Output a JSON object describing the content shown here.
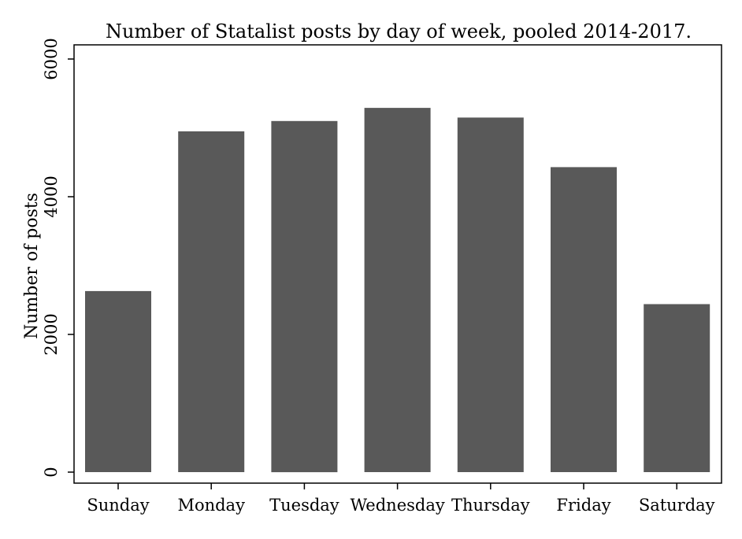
{
  "chart_data": {
    "type": "bar",
    "title": "Number of Statalist posts by day of week, pooled 2014-2017.",
    "xlabel": "",
    "ylabel": "Number of posts",
    "categories": [
      "Sunday",
      "Monday",
      "Tuesday",
      "Wednesday",
      "Thursday",
      "Friday",
      "Saturday"
    ],
    "values": [
      2630,
      4950,
      5100,
      5290,
      5150,
      4430,
      2440
    ],
    "ylim": [
      0,
      6000
    ],
    "yticks": [
      "0",
      "2000",
      "4000",
      "6000"
    ],
    "grid": false,
    "legend": "none",
    "bar_color": "#595959"
  }
}
